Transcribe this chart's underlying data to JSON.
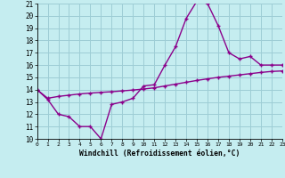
{
  "line1_x": [
    0,
    1,
    2,
    3,
    4,
    5,
    6,
    7,
    8,
    9,
    10,
    11,
    12,
    13,
    14,
    15,
    16,
    17,
    18,
    19,
    20,
    21,
    22,
    23
  ],
  "line1_y": [
    14.0,
    13.2,
    12.0,
    11.8,
    11.0,
    11.0,
    10.0,
    12.8,
    13.0,
    13.3,
    14.3,
    14.4,
    16.0,
    17.5,
    19.8,
    21.2,
    21.0,
    19.2,
    17.0,
    16.5,
    16.7,
    16.0,
    16.0,
    16.0
  ],
  "line2_x": [
    0,
    1,
    2,
    3,
    4,
    5,
    6,
    7,
    8,
    9,
    10,
    11,
    12,
    13,
    14,
    15,
    16,
    17,
    18,
    19,
    20,
    21,
    22,
    23
  ],
  "line2_y": [
    14.0,
    13.3,
    13.45,
    13.55,
    13.65,
    13.72,
    13.78,
    13.83,
    13.9,
    13.97,
    14.05,
    14.15,
    14.3,
    14.45,
    14.6,
    14.75,
    14.88,
    15.0,
    15.1,
    15.2,
    15.3,
    15.4,
    15.48,
    15.52
  ],
  "line_color": "#8b008b",
  "bg_color": "#c5edf0",
  "grid_color": "#9dcdd5",
  "xlabel": "Windchill (Refroidissement éolien,°C)",
  "xlim": [
    0,
    23
  ],
  "ylim": [
    10,
    21
  ],
  "xticks": [
    0,
    1,
    2,
    3,
    4,
    5,
    6,
    7,
    8,
    9,
    10,
    11,
    12,
    13,
    14,
    15,
    16,
    17,
    18,
    19,
    20,
    21,
    22,
    23
  ],
  "yticks": [
    10,
    11,
    12,
    13,
    14,
    15,
    16,
    17,
    18,
    19,
    20,
    21
  ],
  "marker": "+",
  "markersize": 3.5,
  "linewidth": 1.0
}
